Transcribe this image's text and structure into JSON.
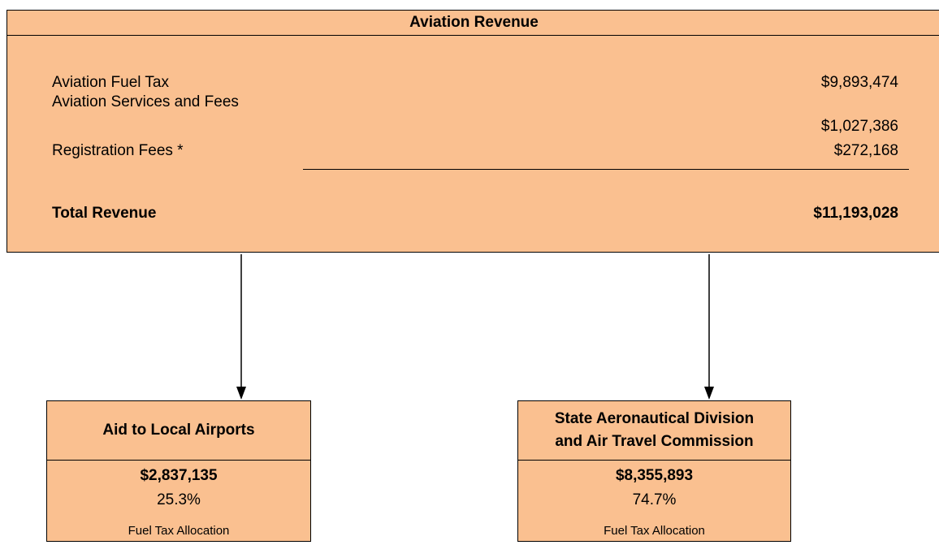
{
  "header": {
    "title": "Aviation Revenue"
  },
  "revenue": {
    "items": [
      {
        "label": "Aviation Fuel Tax",
        "value": "$9,893,474"
      },
      {
        "label": "Aviation Services and Fees",
        "value": "$1,027,386"
      },
      {
        "label": "Registration Fees *",
        "value": "$272,168"
      }
    ],
    "total": {
      "label": "Total Revenue",
      "value": "$11,193,028"
    }
  },
  "allocations": [
    {
      "title": [
        "Aid to Local Airports"
      ],
      "amount": "$2,837,135",
      "percent": "25.3%",
      "note": "Fuel Tax Allocation"
    },
    {
      "title": [
        "State Aeronautical Division",
        "and Air Travel Commission"
      ],
      "amount": "$8,355,893",
      "percent": "74.7%",
      "note": "Fuel Tax Allocation"
    }
  ]
}
